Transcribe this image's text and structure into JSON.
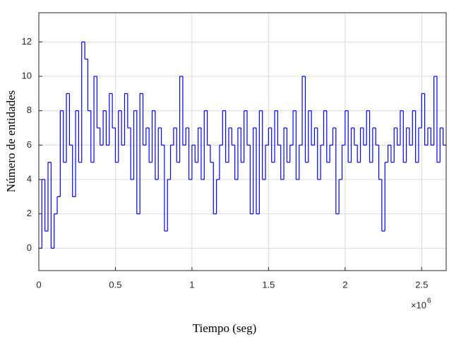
{
  "chart_data": {
    "type": "line",
    "step": true,
    "xlabel": "Tiempo (seg)",
    "ylabel": "Número de entidades",
    "x_multiplier": "×10",
    "x_exponent": "6",
    "grid": true,
    "color": "#0000ff",
    "xlim": [
      0,
      2660000
    ],
    "ylim": [
      -1.3,
      13.7
    ],
    "xticks": [
      0,
      {
        "value": 500000,
        "label": "0.5"
      },
      {
        "value": 1000000,
        "label": "1"
      },
      {
        "value": 1500000,
        "label": "1.5"
      },
      {
        "value": 2000000,
        "label": "2"
      },
      {
        "value": 2500000,
        "label": "2.5"
      }
    ],
    "yticks": [
      0,
      2,
      4,
      6,
      8,
      10,
      12
    ],
    "x": [
      0,
      20000,
      40000,
      60000,
      80000,
      100000,
      120000,
      140000,
      160000,
      180000,
      200000,
      220000,
      240000,
      260000,
      280000,
      300000,
      320000,
      340000,
      360000,
      380000,
      400000,
      420000,
      440000,
      460000,
      480000,
      500000,
      520000,
      540000,
      560000,
      580000,
      600000,
      620000,
      640000,
      660000,
      680000,
      700000,
      720000,
      740000,
      760000,
      780000,
      800000,
      820000,
      840000,
      860000,
      880000,
      900000,
      920000,
      940000,
      960000,
      980000,
      1000000,
      1020000,
      1040000,
      1060000,
      1080000,
      1100000,
      1120000,
      1140000,
      1160000,
      1180000,
      1200000,
      1220000,
      1240000,
      1260000,
      1280000,
      1300000,
      1320000,
      1340000,
      1360000,
      1380000,
      1400000,
      1420000,
      1440000,
      1460000,
      1480000,
      1500000,
      1520000,
      1540000,
      1560000,
      1580000,
      1600000,
      1620000,
      1640000,
      1660000,
      1680000,
      1700000,
      1720000,
      1740000,
      1760000,
      1780000,
      1800000,
      1820000,
      1840000,
      1860000,
      1880000,
      1900000,
      1920000,
      1940000,
      1960000,
      1980000,
      2000000,
      2020000,
      2040000,
      2060000,
      2080000,
      2100000,
      2120000,
      2140000,
      2160000,
      2180000,
      2200000,
      2220000,
      2240000,
      2260000,
      2280000,
      2300000,
      2320000,
      2340000,
      2360000,
      2380000,
      2400000,
      2420000,
      2440000,
      2460000,
      2480000,
      2500000,
      2520000,
      2540000,
      2560000,
      2580000,
      2600000,
      2620000,
      2640000
    ],
    "values": [
      0,
      4,
      1,
      5,
      0,
      2,
      3,
      8,
      5,
      9,
      6,
      3,
      8,
      5,
      12,
      11,
      8,
      5,
      10,
      7,
      6,
      8,
      6,
      9,
      7,
      5,
      8,
      6,
      9,
      7,
      4,
      8,
      2,
      9,
      6,
      7,
      5,
      8,
      4,
      7,
      6,
      1,
      4,
      6,
      7,
      5,
      10,
      6,
      7,
      4,
      6,
      5,
      7,
      4,
      8,
      6,
      5,
      2,
      4,
      6,
      8,
      5,
      7,
      6,
      4,
      7,
      5,
      8,
      6,
      2,
      7,
      2,
      8,
      4,
      6,
      7,
      5,
      8,
      6,
      4,
      7,
      5,
      6,
      8,
      4,
      6,
      10,
      5,
      8,
      6,
      7,
      4,
      6,
      8,
      5,
      6,
      7,
      2,
      4,
      6,
      8,
      5,
      7,
      6,
      5,
      7,
      6,
      8,
      5,
      7,
      6,
      4,
      1,
      5,
      6,
      5,
      7,
      6,
      8,
      5,
      7,
      6,
      8,
      5,
      7,
      9,
      6,
      7,
      6,
      10,
      5,
      7,
      6
    ]
  }
}
